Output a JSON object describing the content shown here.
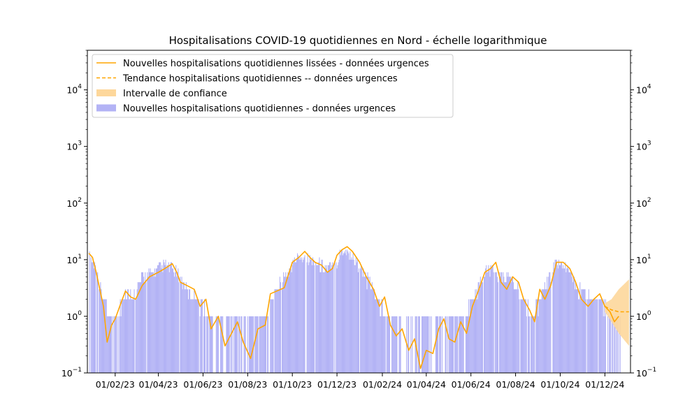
{
  "chart_data": {
    "type": "bar",
    "title": "Hospitalisations COVID-19 quotidiennes en Nord - échelle logarithmique",
    "xlabel": "",
    "ylabel": "",
    "yscale": "log",
    "ylim": [
      0.1,
      50000
    ],
    "xlim": [
      "2022-12-25",
      "2025-01-05"
    ],
    "grid": false,
    "legend_position": "top-left",
    "x_ticks": [
      "01/02/23",
      "01/04/23",
      "01/06/23",
      "01/08/23",
      "01/10/23",
      "01/12/23",
      "01/02/24",
      "01/04/24",
      "01/06/24",
      "01/08/24",
      "01/10/24",
      "01/12/24"
    ],
    "x_tick_dates": [
      "2023-02-01",
      "2023-04-01",
      "2023-06-01",
      "2023-08-01",
      "2023-10-01",
      "2023-12-01",
      "2024-02-01",
      "2024-04-01",
      "2024-06-01",
      "2024-08-01",
      "2024-10-01",
      "2024-12-01"
    ],
    "y_ticks": [
      {
        "value": 0.1,
        "base": "10",
        "exp": "−1"
      },
      {
        "value": 1,
        "base": "10",
        "exp": "0"
      },
      {
        "value": 10,
        "base": "10",
        "exp": "1"
      },
      {
        "value": 100,
        "base": "10",
        "exp": "2"
      },
      {
        "value": 1000,
        "base": "10",
        "exp": "3"
      },
      {
        "value": 10000,
        "base": "10",
        "exp": "4"
      }
    ],
    "colors": {
      "bars": "#b3b3f5",
      "smoothed": "#ffa500",
      "trend": "#ffa500",
      "confidence": "#fdd79b"
    },
    "series": [
      {
        "name": "Nouvelles hospitalisations quotidiennes lissées - données urgences",
        "kind": "line",
        "points": [
          [
            "2022-12-27",
            13
          ],
          [
            "2023-01-01",
            11
          ],
          [
            "2023-01-06",
            6
          ],
          [
            "2023-01-11",
            3
          ],
          [
            "2023-01-16",
            1.5
          ],
          [
            "2023-01-21",
            0.35
          ],
          [
            "2023-01-27",
            0.7
          ],
          [
            "2023-02-01",
            0.9
          ],
          [
            "2023-02-08",
            1.6
          ],
          [
            "2023-02-15",
            2.8
          ],
          [
            "2023-02-22",
            2.2
          ],
          [
            "2023-03-01",
            2.0
          ],
          [
            "2023-03-10",
            3.5
          ],
          [
            "2023-03-20",
            5
          ],
          [
            "2023-04-01",
            6
          ],
          [
            "2023-04-10",
            7
          ],
          [
            "2023-04-20",
            8.5
          ],
          [
            "2023-04-26",
            6
          ],
          [
            "2023-05-01",
            4
          ],
          [
            "2023-05-10",
            3.5
          ],
          [
            "2023-05-20",
            3
          ],
          [
            "2023-05-28",
            1.5
          ],
          [
            "2023-06-05",
            2
          ],
          [
            "2023-06-12",
            0.6
          ],
          [
            "2023-06-22",
            1.0
          ],
          [
            "2023-07-01",
            0.3
          ],
          [
            "2023-07-10",
            0.5
          ],
          [
            "2023-07-18",
            0.8
          ],
          [
            "2023-07-26",
            0.35
          ],
          [
            "2023-08-05",
            0.18
          ],
          [
            "2023-08-15",
            0.6
          ],
          [
            "2023-08-25",
            0.7
          ],
          [
            "2023-09-01",
            2.5
          ],
          [
            "2023-09-10",
            2.8
          ],
          [
            "2023-09-20",
            3.2
          ],
          [
            "2023-10-01",
            9
          ],
          [
            "2023-10-10",
            11
          ],
          [
            "2023-10-18",
            14
          ],
          [
            "2023-10-25",
            11
          ],
          [
            "2023-11-01",
            9
          ],
          [
            "2023-11-10",
            8
          ],
          [
            "2023-11-18",
            6
          ],
          [
            "2023-11-25",
            7
          ],
          [
            "2023-12-01",
            12
          ],
          [
            "2023-12-08",
            15
          ],
          [
            "2023-12-15",
            17
          ],
          [
            "2023-12-22",
            14
          ],
          [
            "2024-01-01",
            9
          ],
          [
            "2024-01-10",
            5
          ],
          [
            "2024-01-20",
            3
          ],
          [
            "2024-01-28",
            1.5
          ],
          [
            "2024-02-04",
            2.2
          ],
          [
            "2024-02-12",
            0.7
          ],
          [
            "2024-02-20",
            0.45
          ],
          [
            "2024-02-28",
            0.6
          ],
          [
            "2024-03-08",
            0.25
          ],
          [
            "2024-03-16",
            0.4
          ],
          [
            "2024-03-24",
            0.12
          ],
          [
            "2024-04-01",
            0.25
          ],
          [
            "2024-04-10",
            0.22
          ],
          [
            "2024-04-18",
            0.6
          ],
          [
            "2024-04-25",
            0.9
          ],
          [
            "2024-05-02",
            0.4
          ],
          [
            "2024-05-10",
            0.35
          ],
          [
            "2024-05-18",
            0.8
          ],
          [
            "2024-05-26",
            0.5
          ],
          [
            "2024-06-03",
            1.5
          ],
          [
            "2024-06-12",
            3
          ],
          [
            "2024-06-20",
            6
          ],
          [
            "2024-06-28",
            7
          ],
          [
            "2024-07-05",
            9
          ],
          [
            "2024-07-12",
            4
          ],
          [
            "2024-07-20",
            3
          ],
          [
            "2024-07-28",
            5
          ],
          [
            "2024-08-05",
            4
          ],
          [
            "2024-08-12",
            2
          ],
          [
            "2024-08-20",
            1.3
          ],
          [
            "2024-08-27",
            0.8
          ],
          [
            "2024-09-03",
            3
          ],
          [
            "2024-09-10",
            2
          ],
          [
            "2024-09-18",
            3.5
          ],
          [
            "2024-09-26",
            9
          ],
          [
            "2024-10-05",
            9
          ],
          [
            "2024-10-14",
            7
          ],
          [
            "2024-10-22",
            4
          ],
          [
            "2024-10-30",
            2
          ],
          [
            "2024-11-08",
            1.5
          ],
          [
            "2024-11-16",
            2
          ],
          [
            "2024-11-24",
            2.5
          ],
          [
            "2024-12-01",
            1.5
          ],
          [
            "2024-12-08",
            1.2
          ],
          [
            "2024-12-14",
            0.8
          ],
          [
            "2024-12-20",
            1.0
          ]
        ]
      },
      {
        "name": "Tendance hospitalisations quotidiennes -- données urgences",
        "kind": "dashed-line",
        "points": [
          [
            "2024-12-01",
            1.5
          ],
          [
            "2024-12-10",
            1.3
          ],
          [
            "2024-12-20",
            1.2
          ],
          [
            "2025-01-03",
            1.2
          ]
        ]
      },
      {
        "name": "Intervalle de confiance",
        "kind": "band",
        "points": [
          [
            "2024-12-01",
            1.2,
            1.7
          ],
          [
            "2024-12-10",
            0.8,
            2.0
          ],
          [
            "2024-12-20",
            0.5,
            3.0
          ],
          [
            "2025-01-03",
            0.3,
            4.5
          ]
        ]
      },
      {
        "name": "Nouvelles hospitalisations quotidiennes - données urgences",
        "kind": "bars",
        "note": "daily counts; zero-valued days are empty",
        "segments": [
          [
            "2022-12-27",
            12
          ],
          [
            "2023-01-05",
            8
          ],
          [
            "2023-01-15",
            2
          ],
          [
            "2023-01-25",
            1
          ],
          [
            "2023-02-05",
            1
          ],
          [
            "2023-02-15",
            3
          ],
          [
            "2023-02-25",
            2
          ],
          [
            "2023-03-10",
            5
          ],
          [
            "2023-03-25",
            6
          ],
          [
            "2023-04-10",
            8
          ],
          [
            "2023-04-25",
            6
          ],
          [
            "2023-05-10",
            3
          ],
          [
            "2023-05-25",
            2
          ],
          [
            "2023-06-10",
            1
          ],
          [
            "2023-06-25",
            1
          ],
          [
            "2023-07-10",
            1
          ],
          [
            "2023-07-25",
            1
          ],
          [
            "2023-08-10",
            1
          ],
          [
            "2023-08-25",
            1
          ],
          [
            "2023-09-10",
            3
          ],
          [
            "2023-09-25",
            6
          ],
          [
            "2023-10-10",
            12
          ],
          [
            "2023-10-25",
            10
          ],
          [
            "2023-11-10",
            8
          ],
          [
            "2023-11-25",
            7
          ],
          [
            "2023-12-10",
            16
          ],
          [
            "2023-12-25",
            10
          ],
          [
            "2024-01-10",
            5
          ],
          [
            "2024-01-25",
            2
          ],
          [
            "2024-02-10",
            1
          ],
          [
            "2024-02-25",
            1
          ],
          [
            "2024-03-10",
            1
          ],
          [
            "2024-03-25",
            1
          ],
          [
            "2024-04-10",
            1
          ],
          [
            "2024-04-25",
            1
          ],
          [
            "2024-05-10",
            1
          ],
          [
            "2024-05-25",
            1
          ],
          [
            "2024-06-10",
            3
          ],
          [
            "2024-06-25",
            7
          ],
          [
            "2024-07-10",
            5
          ],
          [
            "2024-07-25",
            5
          ],
          [
            "2024-08-10",
            2
          ],
          [
            "2024-08-25",
            1
          ],
          [
            "2024-09-10",
            3
          ],
          [
            "2024-09-25",
            9
          ],
          [
            "2024-10-10",
            7
          ],
          [
            "2024-10-25",
            3
          ],
          [
            "2024-11-10",
            2
          ],
          [
            "2024-11-25",
            2
          ],
          [
            "2024-12-10",
            1
          ],
          [
            "2024-12-20",
            1
          ]
        ]
      }
    ]
  }
}
